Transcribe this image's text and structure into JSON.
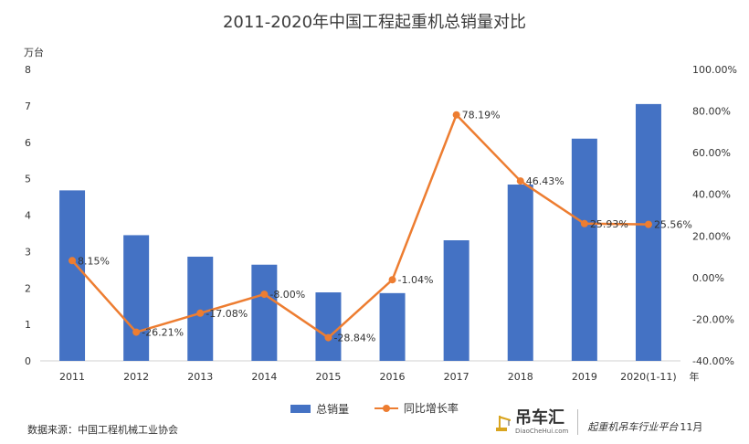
{
  "chart_data": {
    "type": "bar",
    "title": "2011-2020年中国工程起重机总销量对比",
    "categories": [
      "2011",
      "2012",
      "2013",
      "2014",
      "2015",
      "2016",
      "2017",
      "2018",
      "2019",
      "2020(1-11)"
    ],
    "x_unit": "年",
    "y_unit": "万台",
    "ylim": [
      0,
      8
    ],
    "y_ticks": [
      "0",
      "1",
      "2",
      "3",
      "4",
      "5",
      "6",
      "7",
      "8"
    ],
    "y2lim": [
      -40,
      100
    ],
    "y2_ticks": [
      "-40.00%",
      "-20.00%",
      "0.00%",
      "20.00%",
      "40.00%",
      "60.00%",
      "80.00%",
      "100.00%"
    ],
    "series": [
      {
        "name": "总销量",
        "type": "bar",
        "axis": "left",
        "color": "#4472c4",
        "values": [
          4.68,
          3.45,
          2.86,
          2.64,
          1.88,
          1.86,
          3.31,
          4.84,
          6.1,
          7.05
        ]
      },
      {
        "name": "同比增长率",
        "type": "line",
        "axis": "right",
        "color": "#ed7d31",
        "values": [
          8.15,
          -26.21,
          -17.08,
          -8.0,
          -28.84,
          -1.04,
          78.19,
          46.43,
          25.93,
          25.56
        ],
        "labels": [
          "8.15%",
          "-26.21%",
          "-17.08%",
          "-8.00%",
          "-28.84%",
          "-1.04%",
          "78.19%",
          "46.43%",
          "25.93%",
          "25.56%"
        ]
      }
    ],
    "grid": false,
    "legend_position": "bottom"
  },
  "footer": {
    "source": "数据来源：中国工程机械工业协会",
    "brand_name": "吊车汇",
    "brand_url": "DiaoCheHui.com",
    "slogan": "起重机吊车行业平台",
    "note": "11月"
  }
}
